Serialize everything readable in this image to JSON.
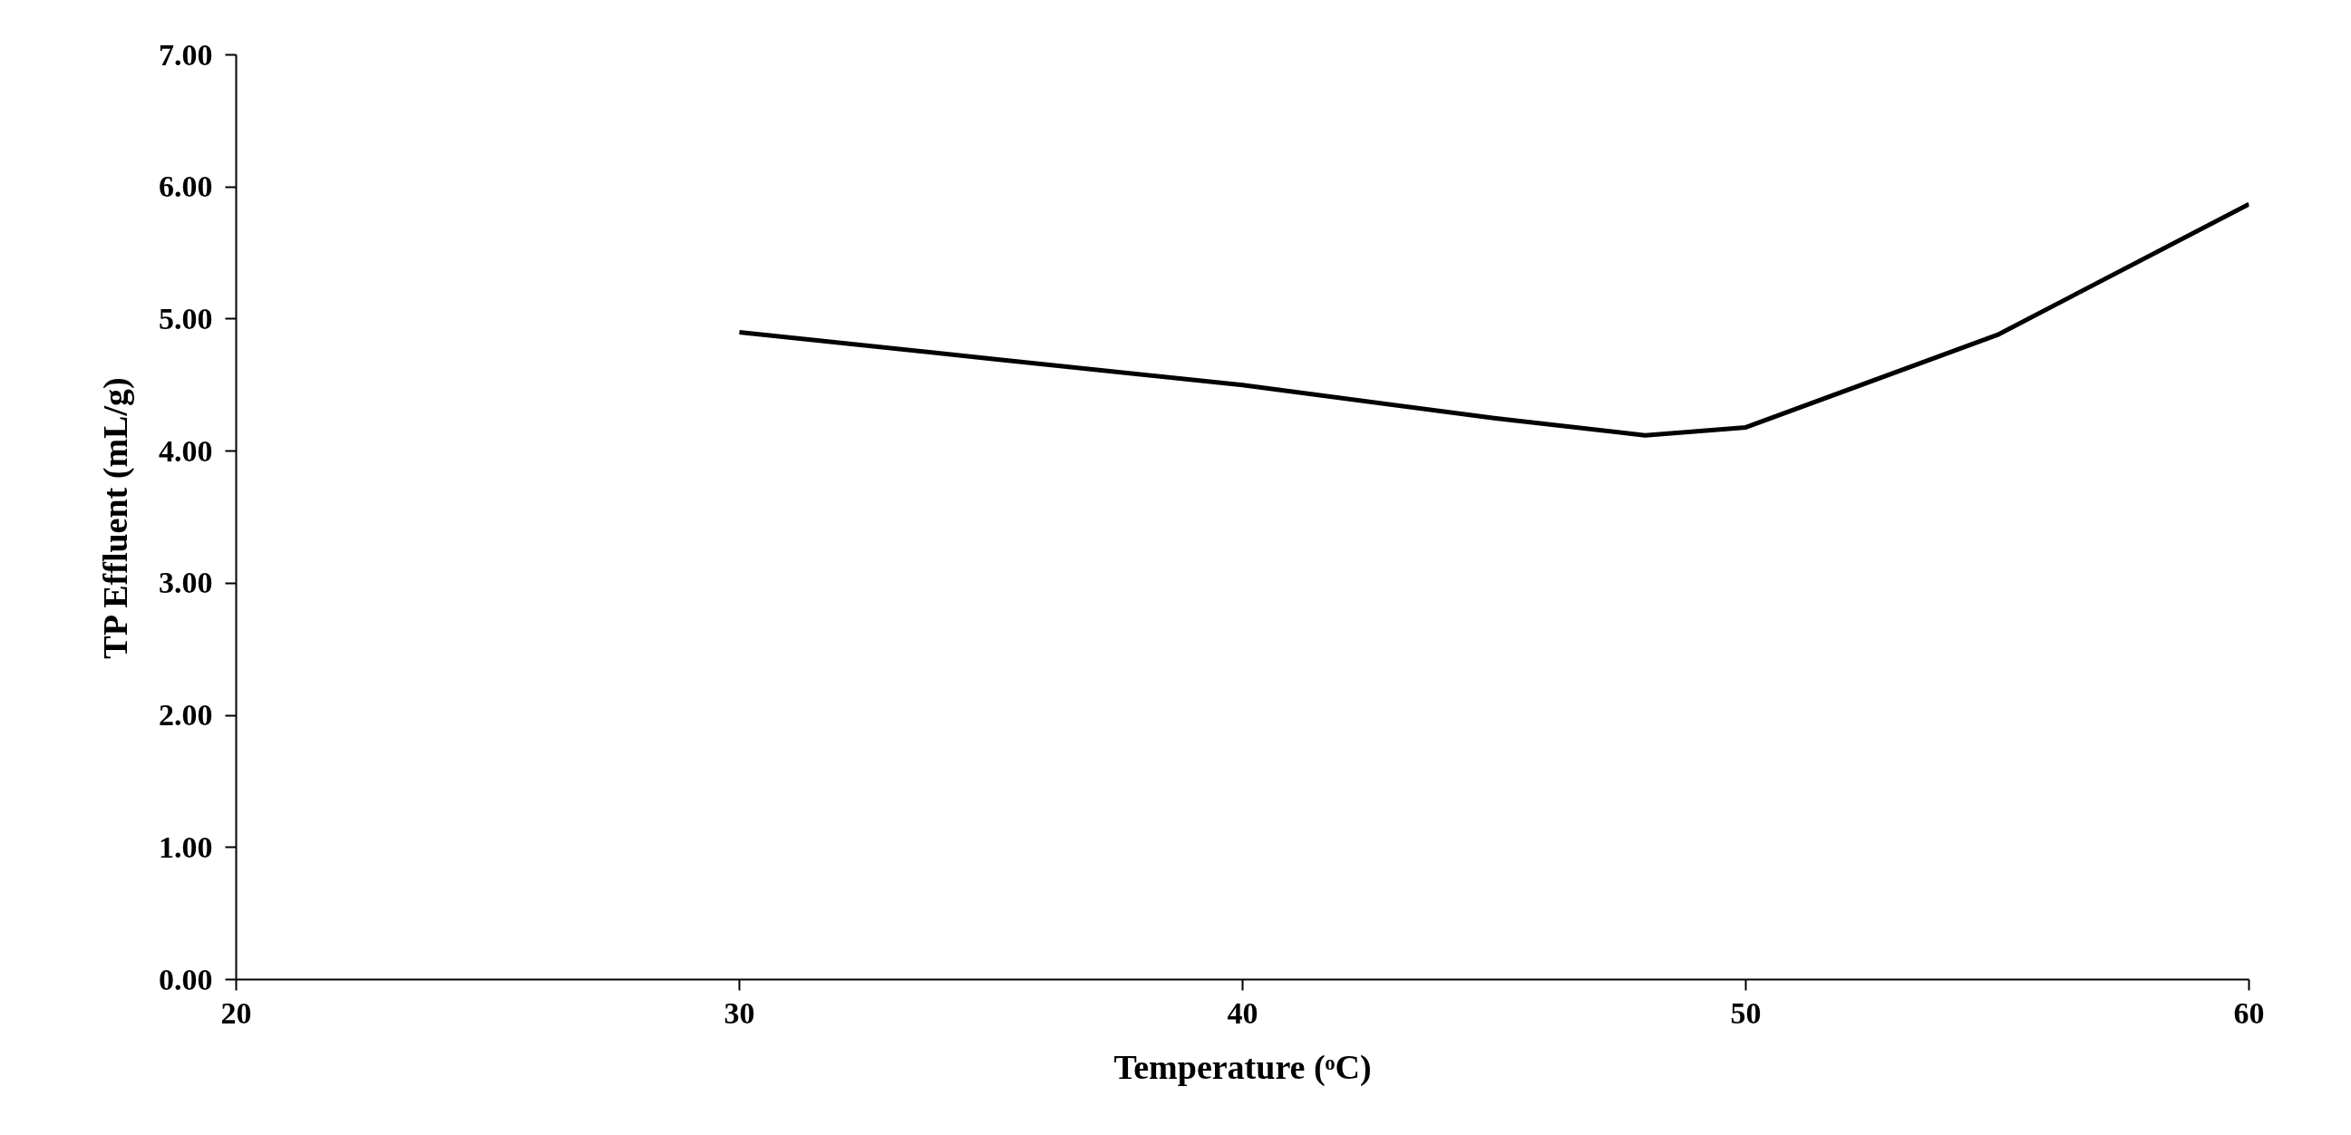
{
  "chart_data": {
    "type": "line",
    "xlabel": "Temperature (ᵒC)",
    "ylabel": "TP Effluent (mL/g)",
    "x": [
      30,
      35,
      40,
      45,
      48,
      50,
      55,
      60
    ],
    "series": [
      {
        "color": "#000000",
        "values": [
          4.9,
          4.7,
          4.5,
          4.25,
          4.12,
          4.18,
          4.88,
          5.87
        ]
      }
    ],
    "xlim": [
      20,
      60
    ],
    "xticks": [
      20,
      30,
      40,
      50,
      60
    ],
    "ylim": [
      0,
      7
    ],
    "yticks": [
      {
        "value": 0,
        "label": "0.00"
      },
      {
        "value": 1,
        "label": "1.00"
      },
      {
        "value": 2,
        "label": "2.00"
      },
      {
        "value": 3,
        "label": "3.00"
      },
      {
        "value": 4,
        "label": "4.00"
      },
      {
        "value": 5,
        "label": "5.00"
      },
      {
        "value": 6,
        "label": "6.00"
      },
      {
        "value": 7,
        "label": "7.00"
      }
    ],
    "grid": false,
    "marker": "none",
    "line_style": "solid"
  }
}
